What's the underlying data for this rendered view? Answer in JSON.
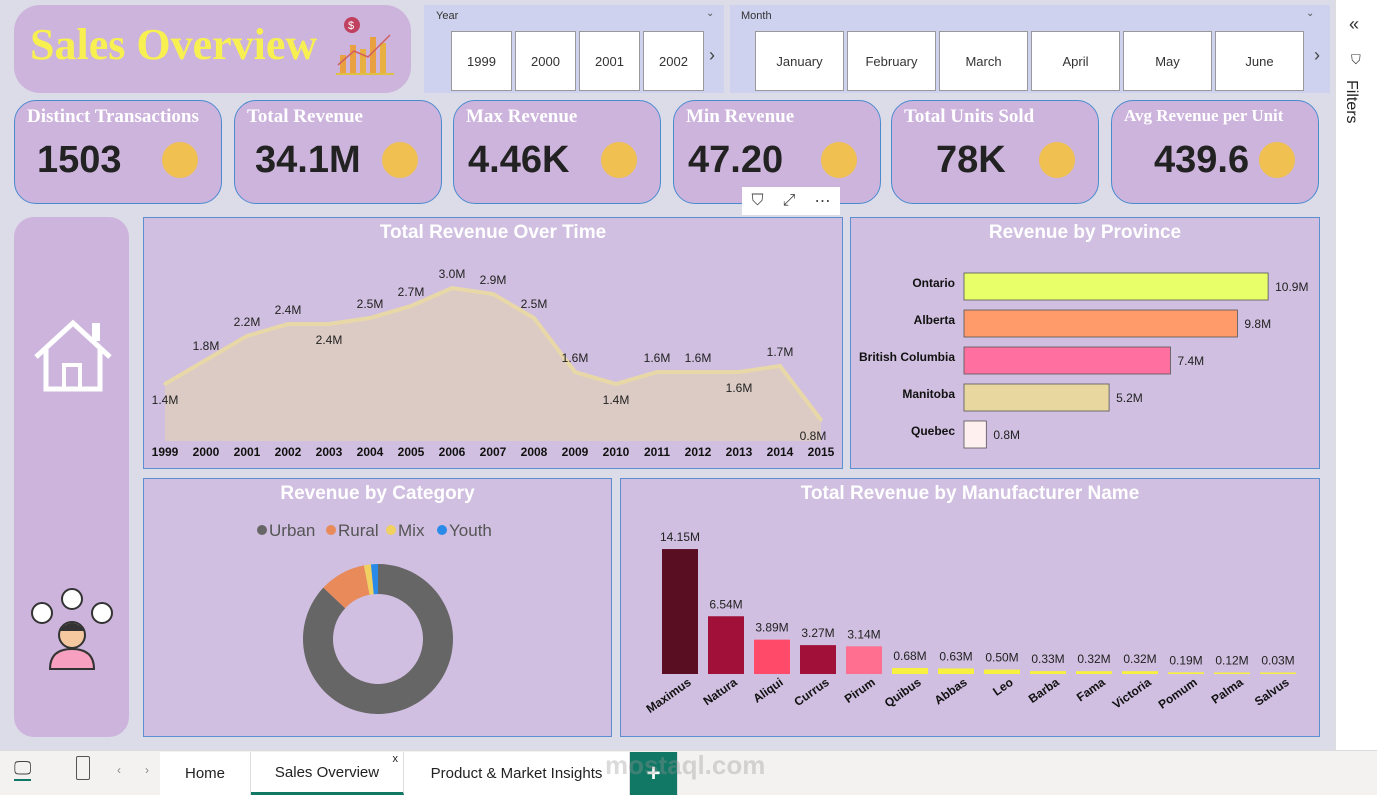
{
  "header": {
    "title": "Sales Overview"
  },
  "year_slicer": {
    "label": "Year",
    "options": [
      "1999",
      "2000",
      "2001",
      "2002"
    ]
  },
  "month_slicer": {
    "label": "Month",
    "options": [
      "January",
      "February",
      "March",
      "April",
      "May",
      "June"
    ]
  },
  "kpis": [
    {
      "title": "Distinct Transactions",
      "value": "1503"
    },
    {
      "title": "Total Revenue",
      "value": "34.1M"
    },
    {
      "title": "Max Revenue",
      "value": "4.46K"
    },
    {
      "title": "Min Revenue",
      "value": "47.20"
    },
    {
      "title": "Total Units Sold",
      "value": "78K"
    },
    {
      "title": "Avg Revenue per Unit",
      "value": "439.6"
    }
  ],
  "filters_pane": {
    "label": "Filters"
  },
  "chart_data": [
    {
      "type": "area",
      "title": "Total Revenue Over Time",
      "x": [
        "1999",
        "2000",
        "2001",
        "2002",
        "2003",
        "2004",
        "2005",
        "2006",
        "2007",
        "2008",
        "2009",
        "2010",
        "2011",
        "2012",
        "2013",
        "2014",
        "2015"
      ],
      "values": [
        1.4,
        1.8,
        2.2,
        2.4,
        2.4,
        2.5,
        2.7,
        3.0,
        2.9,
        2.5,
        1.6,
        1.4,
        1.6,
        1.6,
        1.6,
        1.7,
        0.8
      ],
      "labels": [
        "1.4M",
        "1.8M",
        "2.2M",
        "2.4M",
        "2.4M",
        "2.5M",
        "2.7M",
        "3.0M",
        "2.9M",
        "2.5M",
        "1.6M",
        "1.4M",
        "1.6M",
        "1.6M",
        "1.6M",
        "1.7M",
        "0.8M"
      ],
      "unit": "M",
      "color": "#e8d8a8"
    },
    {
      "type": "bar",
      "orientation": "horizontal",
      "title": "Revenue by Province",
      "categories": [
        "Ontario",
        "Alberta",
        "British Columbia",
        "Manitoba",
        "Quebec"
      ],
      "values": [
        10.9,
        9.8,
        7.4,
        5.2,
        0.8
      ],
      "labels": [
        "10.9M",
        "9.8M",
        "7.4M",
        "5.2M",
        "0.8M"
      ],
      "colors": [
        "#e8ff6a",
        "#ff9a6a",
        "#ff70a0",
        "#e8d8a0",
        "#fff0f0"
      ]
    },
    {
      "type": "pie",
      "subtype": "donut",
      "title": "Revenue by Category",
      "categories": [
        "Urban",
        "Rural",
        "Mix",
        "Youth"
      ],
      "values": [
        87,
        10,
        1.5,
        1.5
      ],
      "colors": [
        "#666666",
        "#e88a5a",
        "#f0d060",
        "#2a8ae8"
      ],
      "legend": "top"
    },
    {
      "type": "bar",
      "title": "Total Revenue by Manufacturer Name",
      "categories": [
        "Maximus",
        "Natura",
        "Aliqui",
        "Currus",
        "Pirum",
        "Quibus",
        "Abbas",
        "Leo",
        "Barba",
        "Fama",
        "Victoria",
        "Pomum",
        "Palma",
        "Salvus"
      ],
      "values": [
        14.15,
        6.54,
        3.89,
        3.27,
        3.14,
        0.68,
        0.63,
        0.5,
        0.33,
        0.32,
        0.32,
        0.19,
        0.12,
        0.03
      ],
      "labels": [
        "14.15M",
        "6.54M",
        "3.89M",
        "3.27M",
        "3.14M",
        "0.68M",
        "0.63M",
        "0.50M",
        "0.33M",
        "0.32M",
        "0.32M",
        "0.19M",
        "0.12M",
        "0.03M"
      ],
      "colors": [
        "#5a0e22",
        "#a01038",
        "#ff4a6a",
        "#a01038",
        "#ff7090",
        "#f8f040",
        "#f8f040",
        "#f8f040",
        "#f8f040",
        "#f8f040",
        "#f8f040",
        "#f8f040",
        "#f8f040",
        "#f8f040"
      ]
    }
  ],
  "tabs": [
    {
      "label": "Home"
    },
    {
      "label": "Sales Overview",
      "close": "x"
    },
    {
      "label": "Product & Market Insights"
    }
  ],
  "add_page": "+",
  "watermark": "mostaql.com",
  "icons": {
    "home": "home-icon",
    "filter": "filter-icon",
    "focus": "focus-mode-icon",
    "more": "more-options-icon"
  }
}
